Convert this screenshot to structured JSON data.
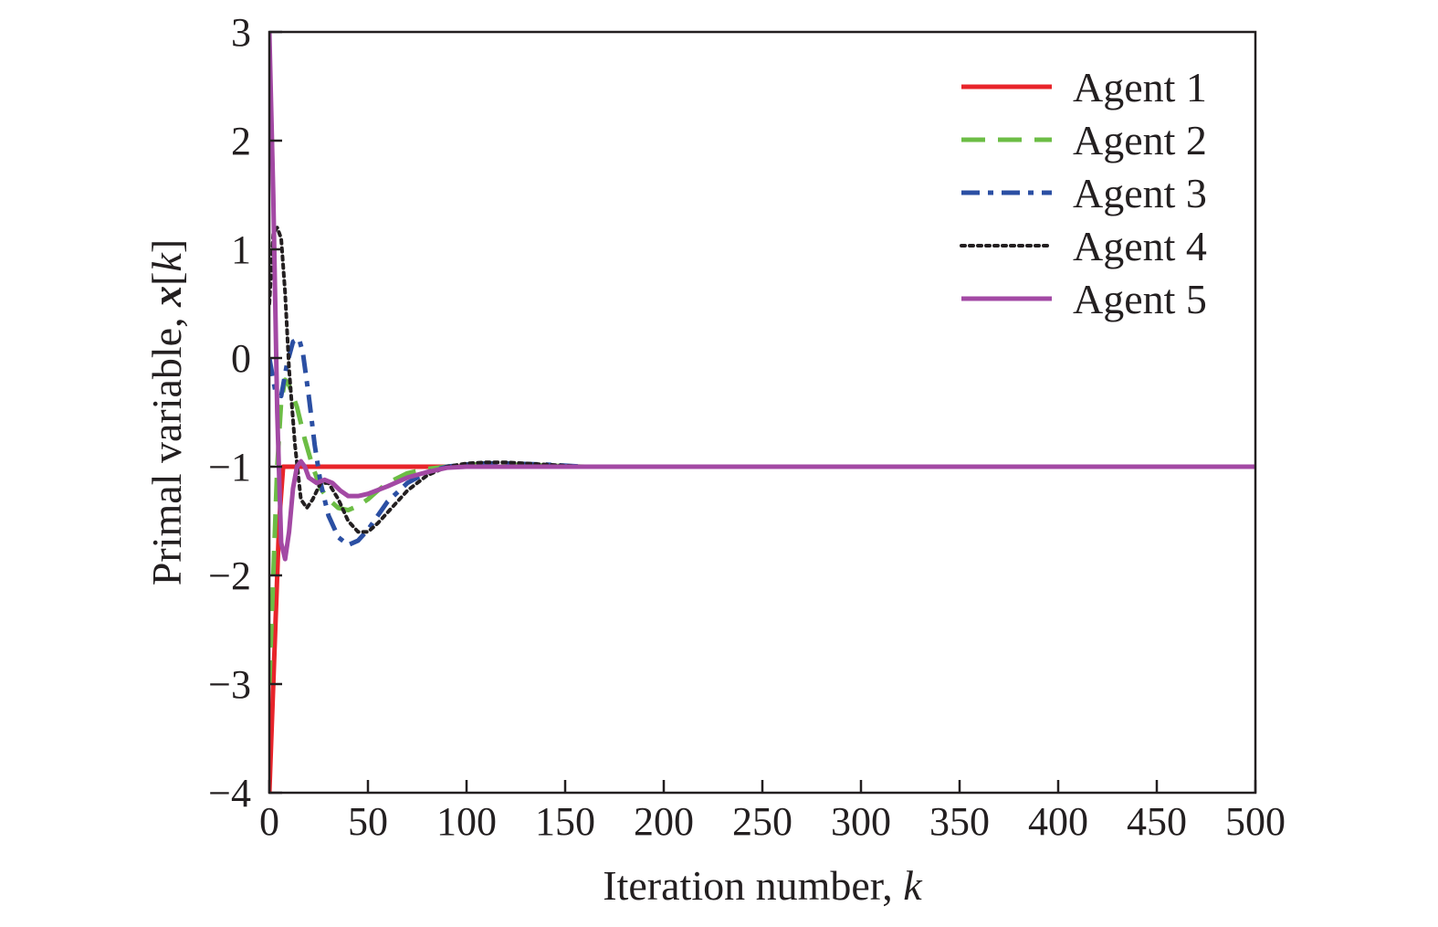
{
  "chart_data": {
    "type": "line",
    "title": "",
    "xlabel": "Iteration number, ",
    "xlabel_var": "k",
    "ylabel": "Primal variable, ",
    "ylabel_vec": "x",
    "ylabel_open": "[",
    "ylabel_var": "k",
    "ylabel_close": "]",
    "xlim": [
      0,
      500
    ],
    "ylim": [
      -4,
      3
    ],
    "xticks": [
      0,
      50,
      100,
      150,
      200,
      250,
      300,
      350,
      400,
      450,
      500
    ],
    "yticks": [
      3,
      2,
      1,
      0,
      -1,
      -2,
      -3,
      -4
    ],
    "xtick_labels": [
      "0",
      "50",
      "100",
      "150",
      "200",
      "250",
      "300",
      "350",
      "400",
      "450",
      "500"
    ],
    "ytick_labels": [
      "3",
      "2",
      "1",
      "0",
      "−1",
      "−2",
      "−3",
      "−4"
    ],
    "grid": false,
    "legend_position": "top-right",
    "series": [
      {
        "name": "Agent 1",
        "color": "#e8242a",
        "style": "solid",
        "x": [
          0,
          5,
          7,
          10,
          50,
          100,
          500
        ],
        "y": [
          -4,
          -1.5,
          -1.0,
          -1.0,
          -1.0,
          -1.0,
          -1.0
        ]
      },
      {
        "name": "Agent 2",
        "color": "#6cbd45",
        "style": "dashed",
        "x": [
          0,
          2,
          4,
          6,
          8,
          10,
          14,
          18,
          22,
          26,
          30,
          35,
          40,
          45,
          50,
          55,
          60,
          70,
          80,
          90,
          100,
          110,
          120,
          140,
          160,
          200,
          300,
          500
        ],
        "y": [
          -3.0,
          -2.0,
          -1.0,
          -0.4,
          -0.2,
          -0.25,
          -0.45,
          -0.75,
          -1.0,
          -1.2,
          -1.3,
          -1.38,
          -1.4,
          -1.36,
          -1.3,
          -1.22,
          -1.15,
          -1.06,
          -1.02,
          -1.0,
          -0.98,
          -0.98,
          -0.98,
          -0.99,
          -1.0,
          -1.0,
          -1.0,
          -1.0
        ]
      },
      {
        "name": "Agent 3",
        "color": "#2b4fa3",
        "style": "dashdot",
        "x": [
          0,
          3,
          6,
          9,
          12,
          15,
          17,
          20,
          23,
          26,
          30,
          35,
          40,
          45,
          50,
          55,
          60,
          70,
          80,
          90,
          100,
          110,
          120,
          140,
          160,
          200,
          300,
          500
        ],
        "y": [
          0,
          -0.3,
          -0.35,
          -0.05,
          0.15,
          0.18,
          0.05,
          -0.35,
          -0.8,
          -1.15,
          -1.45,
          -1.65,
          -1.72,
          -1.68,
          -1.58,
          -1.45,
          -1.32,
          -1.15,
          -1.05,
          -1.0,
          -0.98,
          -0.97,
          -0.97,
          -0.98,
          -1.0,
          -1.0,
          -1.0,
          -1.0
        ]
      },
      {
        "name": "Agent 4",
        "color": "#231f20",
        "style": "dotted",
        "x": [
          0,
          2,
          4,
          6,
          8,
          10,
          13,
          16,
          19,
          22,
          26,
          30,
          35,
          40,
          45,
          50,
          55,
          60,
          70,
          80,
          90,
          100,
          110,
          120,
          140,
          160,
          200,
          300,
          500
        ],
        "y": [
          0.5,
          1.15,
          1.2,
          1.1,
          0.6,
          -0.1,
          -0.8,
          -1.3,
          -1.38,
          -1.3,
          -1.15,
          -1.15,
          -1.3,
          -1.5,
          -1.6,
          -1.6,
          -1.52,
          -1.42,
          -1.22,
          -1.08,
          -1.0,
          -0.97,
          -0.96,
          -0.96,
          -0.98,
          -1.0,
          -1.0,
          -1.0,
          -1.0
        ]
      },
      {
        "name": "Agent 5",
        "color": "#a349a4",
        "style": "solid",
        "x": [
          0,
          2,
          4,
          6,
          8,
          10,
          12,
          14,
          16,
          18,
          20,
          24,
          28,
          32,
          36,
          40,
          45,
          50,
          60,
          70,
          80,
          90,
          100,
          120,
          150,
          200,
          300,
          500
        ],
        "y": [
          3.0,
          1.5,
          -0.5,
          -1.7,
          -1.85,
          -1.6,
          -1.2,
          -1.0,
          -0.95,
          -1.0,
          -1.1,
          -1.15,
          -1.12,
          -1.15,
          -1.22,
          -1.27,
          -1.27,
          -1.25,
          -1.18,
          -1.1,
          -1.05,
          -1.01,
          -1.0,
          -1.0,
          -1.0,
          -1.0,
          -1.0,
          -1.0
        ]
      }
    ]
  }
}
